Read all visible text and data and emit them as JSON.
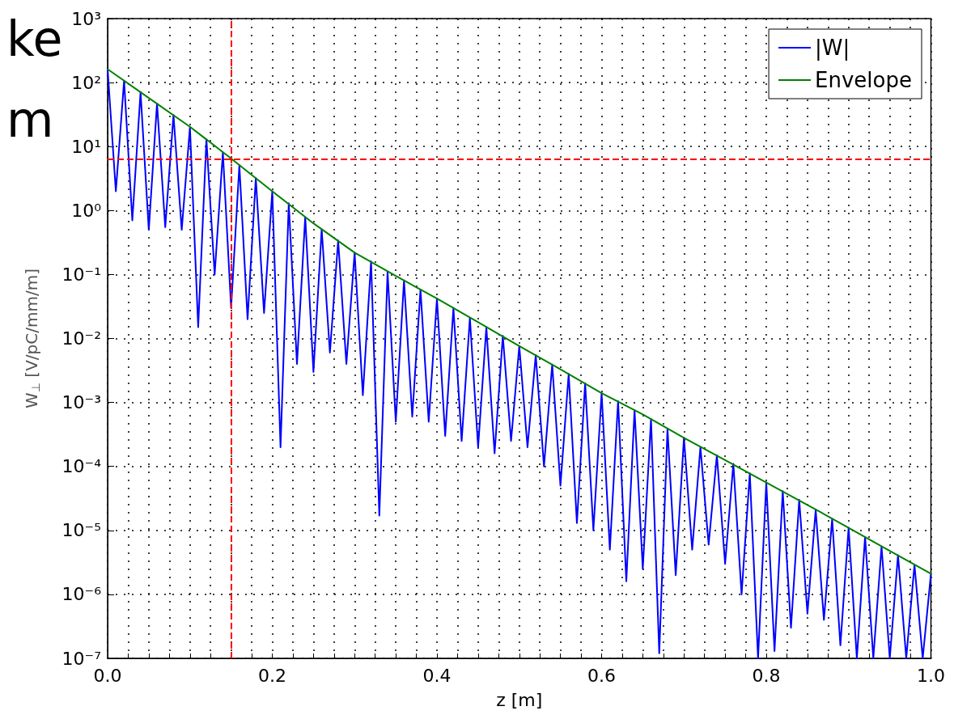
{
  "chart_data": {
    "type": "line",
    "xlabel": "z [m]",
    "ylabel": "W$_{⊥}$ [V/pC/mm/m]",
    "log": "y",
    "grid": true,
    "legend": "top right",
    "marker": "none",
    "line_style": "solid",
    "annotations": [
      "ke",
      "m"
    ],
    "xlim": [
      0,
      1
    ],
    "ylim": [
      1e-07,
      1000
    ],
    "xticks": [
      {
        "value": 0,
        "label": "0.0"
      },
      {
        "value": 0.025,
        "label": null
      },
      {
        "value": 0.05,
        "label": null
      },
      {
        "value": 0.075,
        "label": null
      },
      {
        "value": 0.1,
        "label": null
      },
      {
        "value": 0.125,
        "label": null
      },
      {
        "value": 0.15,
        "label": null
      },
      {
        "value": 0.175,
        "label": null
      },
      0.2,
      {
        "value": 0.225,
        "label": null
      },
      {
        "value": 0.25,
        "label": null
      },
      {
        "value": 0.275,
        "label": null
      },
      {
        "value": 0.3,
        "label": null
      },
      {
        "value": 0.325,
        "label": null
      },
      {
        "value": 0.35,
        "label": null
      },
      {
        "value": 0.375,
        "label": null
      },
      0.4,
      {
        "value": 0.425,
        "label": null
      },
      {
        "value": 0.45,
        "label": null
      },
      {
        "value": 0.475,
        "label": null
      },
      {
        "value": 0.5,
        "label": null
      },
      {
        "value": 0.525,
        "label": null
      },
      {
        "value": 0.55,
        "label": null
      },
      {
        "value": 0.575,
        "label": null
      },
      0.6,
      {
        "value": 0.625,
        "label": null
      },
      {
        "value": 0.65,
        "label": null
      },
      {
        "value": 0.675,
        "label": null
      },
      {
        "value": 0.7,
        "label": null
      },
      {
        "value": 0.725,
        "label": null
      },
      {
        "value": 0.75,
        "label": null
      },
      {
        "value": 0.775,
        "label": null
      },
      0.8,
      {
        "value": 0.825,
        "label": null
      },
      {
        "value": 0.85,
        "label": null
      },
      {
        "value": 0.875,
        "label": null
      },
      {
        "value": 0.9,
        "label": null
      },
      {
        "value": 0.925,
        "label": null
      },
      {
        "value": 0.95,
        "label": null
      },
      {
        "value": 0.975,
        "label": null
      },
      {
        "value": 1,
        "label": "1.0"
      }
    ],
    "yticks": [
      {
        "value": 1e-07,
        "label": "10⁻⁷"
      },
      {
        "value": 1e-06,
        "label": "10⁻⁶"
      },
      {
        "value": 1e-05,
        "label": "10⁻⁵"
      },
      {
        "value": 0.0001,
        "label": "10⁻⁴"
      },
      {
        "value": 0.001,
        "label": "10⁻³"
      },
      {
        "value": 0.01,
        "label": "10⁻²"
      },
      {
        "value": 0.1,
        "label": "10⁻¹"
      },
      {
        "value": 1,
        "label": "10⁰"
      },
      {
        "value": 10,
        "label": "10¹"
      },
      {
        "value": 100,
        "label": "10²"
      },
      {
        "value": 1000,
        "label": "10³"
      }
    ],
    "ref_lines": [
      {
        "axis": "x",
        "value": 0.15,
        "color": "#ff0000",
        "line_style": "dashed"
      },
      {
        "axis": "y",
        "value": 6.4,
        "color": "#ff0000",
        "line_style": "dashed"
      }
    ],
    "series": [
      {
        "name": "|W|",
        "color": "#0000ff",
        "x": [
          0,
          0.01,
          0.02,
          0.03,
          0.04,
          0.05,
          0.06,
          0.07,
          0.08,
          0.09,
          0.1,
          0.11,
          0.12,
          0.13,
          0.14,
          0.15,
          0.16,
          0.17,
          0.18,
          0.19,
          0.2,
          0.21,
          0.22,
          0.23,
          0.24,
          0.25,
          0.26,
          0.27,
          0.28,
          0.29,
          0.3,
          0.31,
          0.32,
          0.33,
          0.34,
          0.35,
          0.36,
          0.37,
          0.38,
          0.39,
          0.4,
          0.41,
          0.42,
          0.43,
          0.44,
          0.45,
          0.46,
          0.47,
          0.48,
          0.49,
          0.5,
          0.51,
          0.52,
          0.53,
          0.54,
          0.55,
          0.56,
          0.57,
          0.58,
          0.59,
          0.6,
          0.61,
          0.62,
          0.63,
          0.64,
          0.65,
          0.66,
          0.67,
          0.68,
          0.69,
          0.7,
          0.71,
          0.72,
          0.73,
          0.74,
          0.75,
          0.76,
          0.77,
          0.78,
          0.79,
          0.8,
          0.81,
          0.82,
          0.83,
          0.84,
          0.85,
          0.86,
          0.87,
          0.88,
          0.89,
          0.9,
          0.91,
          0.92,
          0.93,
          0.94,
          0.95,
          0.96,
          0.97,
          0.98,
          0.99,
          1
        ],
        "values": [
          162,
          2.0,
          107,
          0.7,
          71,
          0.5,
          47,
          0.55,
          31,
          0.5,
          20,
          0.015,
          13,
          0.1,
          8.1,
          0.03,
          5.1,
          0.02,
          3.2,
          0.025,
          2.0,
          0.0002,
          1.3,
          0.004,
          0.79,
          0.003,
          0.51,
          0.006,
          0.34,
          0.004,
          0.22,
          0.0013,
          0.16,
          1.7e-05,
          0.11,
          0.0005,
          0.081,
          0.0006,
          0.058,
          0.0005,
          0.042,
          0.0003,
          0.03,
          0.00025,
          0.021,
          0.0002,
          0.015,
          0.00016,
          0.011,
          0.00025,
          0.0076,
          0.0002,
          0.0055,
          0.0001,
          0.0039,
          5e-05,
          0.0028,
          1.3e-05,
          0.002,
          1e-05,
          0.0014,
          5e-06,
          0.00105,
          1.6e-06,
          0.00076,
          2.5e-06,
          0.00055,
          1.2e-07,
          0.00039,
          2e-06,
          0.00028,
          5e-06,
          0.0002,
          6e-06,
          0.00015,
          3e-06,
          0.00011,
          1e-06,
          7.8e-05,
          1e-07,
          5.6e-05,
          1.3e-07,
          4.1e-05,
          3e-07,
          3e-05,
          5e-07,
          2.1e-05,
          4e-07,
          1.5e-05,
          1.6e-07,
          1.1e-05,
          1e-07,
          7.9e-06,
          1e-07,
          5.6e-06,
          1e-07,
          4.1e-06,
          1e-07,
          2.9e-06,
          1e-07,
          2.1e-06
        ]
      },
      {
        "name": "Envelope",
        "color": "#008000",
        "x": [
          0,
          0.05,
          0.1,
          0.15,
          0.2,
          0.25,
          0.3,
          0.35,
          0.4,
          0.45,
          0.5,
          0.55,
          0.6,
          0.65,
          0.7,
          0.75,
          0.8,
          0.85,
          0.9,
          0.95,
          1
        ],
        "values": [
          162,
          57.5,
          20.4,
          6.5,
          2.0,
          0.63,
          0.22,
          0.095,
          0.042,
          0.018,
          0.0076,
          0.0033,
          0.0014,
          0.00065,
          0.00028,
          0.000126,
          5.6e-05,
          2.5e-05,
          1.1e-05,
          4.8e-06,
          2.1e-06
        ]
      }
    ]
  }
}
